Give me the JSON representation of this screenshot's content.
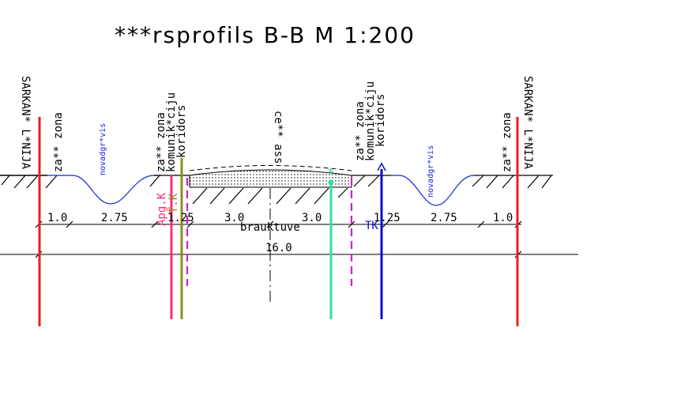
{
  "title": "***rsprofils B-B M 1:200",
  "labels": {
    "sarkana_left": "SARKAN* L*NIJA",
    "sarkana_right": "SARKAN* L*NIJA",
    "zale_zona_left": "za** zona",
    "zale_zona_right": "za** zona",
    "novadgravis_left": "novadgr*vis",
    "novadgravis_right": "novadgr*vis",
    "kom_zona_left_1": "za** zona",
    "kom_zona_left_2": "komunik*ciju",
    "kom_zona_left_3": "koridors",
    "kom_zona_right_1": "za** zona",
    "kom_zona_right_2": "komunik*ciju",
    "kom_zona_right_3": "koridors",
    "centre_axis": "ce** ass",
    "apg_k": "Apg.K",
    "t_k": "T.K",
    "tk": "TK",
    "star": "*",
    "brauktuve": "brauktuve"
  },
  "dimensions": {
    "d1": "1.0",
    "d2": "2.75",
    "d3": "1.25",
    "d4": "3.0",
    "d5": "3.0",
    "d6": "1.25",
    "d7": "2.75",
    "d8": "1.0",
    "total": "16.0"
  },
  "colors": {
    "red": "#ee1c24",
    "blue": "#1428d8",
    "navy": "#0a0acc",
    "pink": "#ff2a7a",
    "olive": "#8c8c1e",
    "mint": "#2ee0a0",
    "magenta": "#cc22cc"
  }
}
